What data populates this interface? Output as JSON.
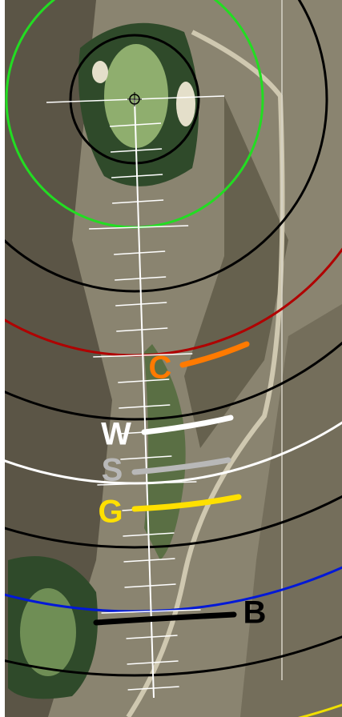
{
  "club_labels": [
    "C",
    "W",
    "S",
    "G",
    "B"
  ]
}
